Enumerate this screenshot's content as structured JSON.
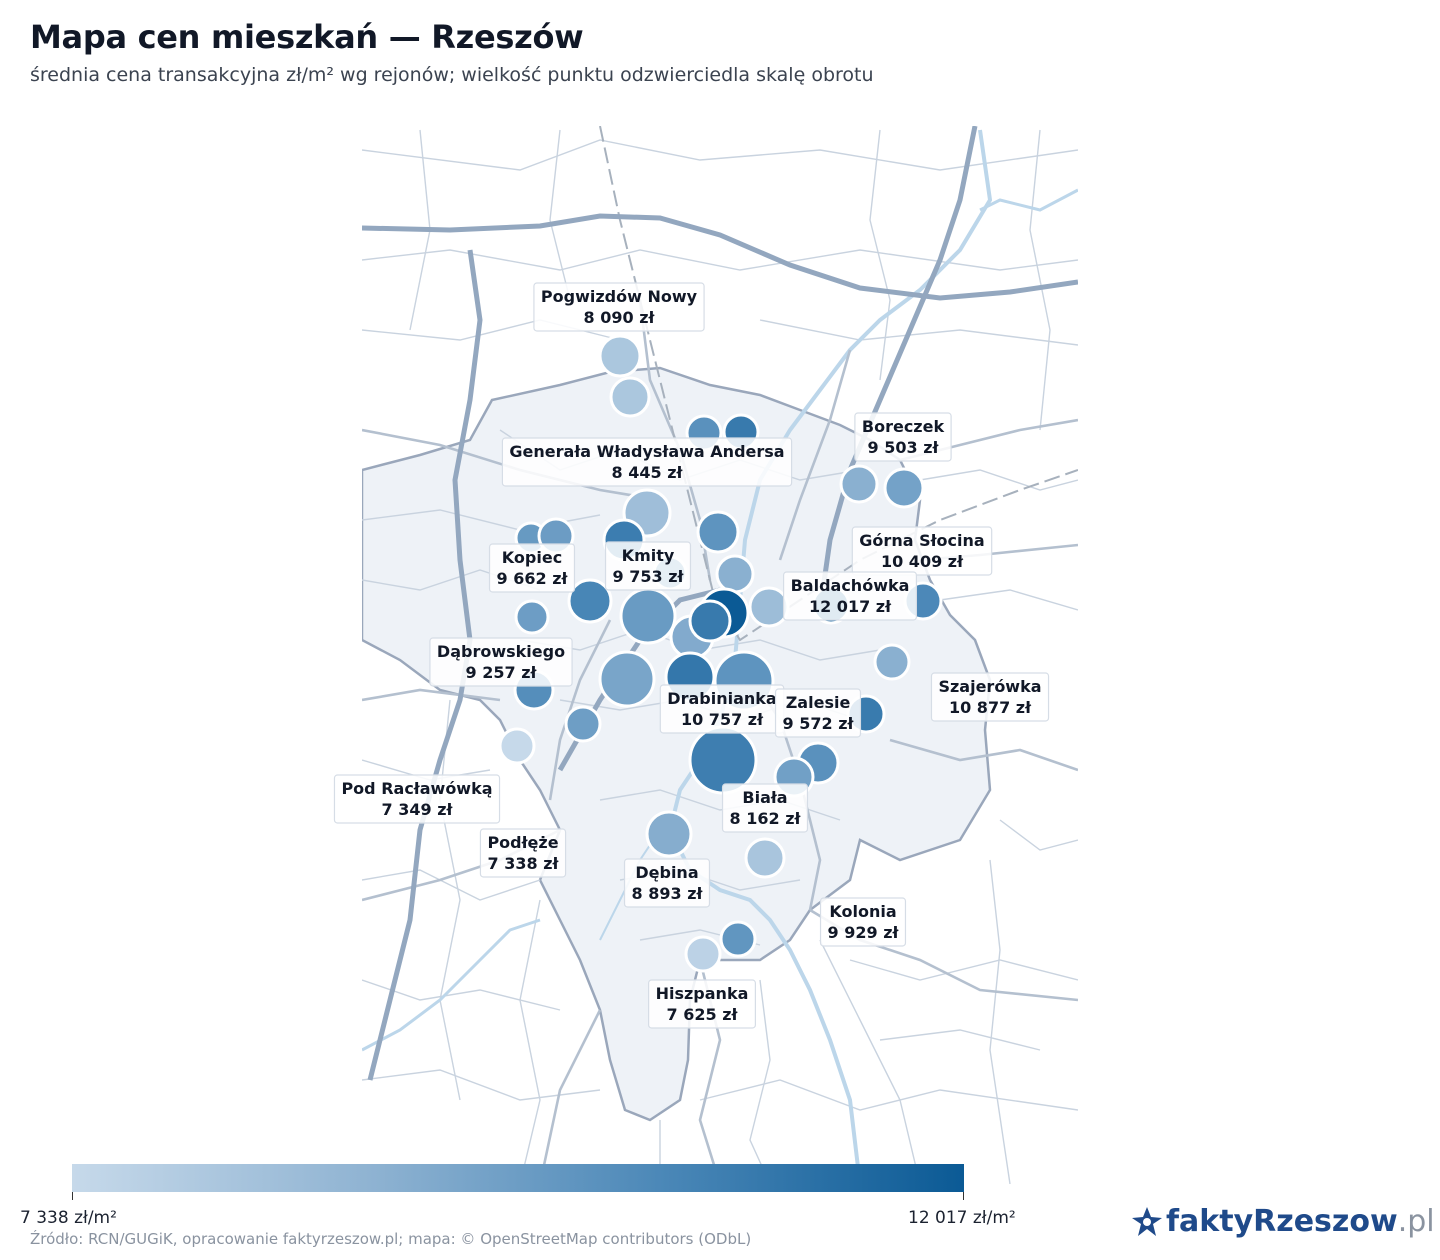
{
  "title": "Mapa cen mieszkań — Rzeszów",
  "subtitle": "średnia cena transakcyjna zł/m² wg rejonów; wielkość punktu odzwierciedla skalę obrotu",
  "legend": {
    "min_label": "7 338 zł/m²",
    "max_label": "12 017 zł/m²",
    "min_value": 7338,
    "max_value": 12017,
    "colors": [
      "#c6d9ea",
      "#8fb3d2",
      "#4a87b7",
      "#0b5a95"
    ]
  },
  "source": "Źródło: RCN/GUGiK, opracowanie faktyrzeszow.pl; mapa: © OpenStreetMap contributors (ODbL)",
  "brand": {
    "main": "faktyRzeszow",
    "suffix": ".pl"
  },
  "labeled_districts": [
    {
      "name": "Pogwizdów Nowy",
      "price": "8 090 zł",
      "value": 8090
    },
    {
      "name": "Generała Władysława Andersa",
      "price": "8 445 zł",
      "value": 8445
    },
    {
      "name": "Boreczek",
      "price": "9 503 zł",
      "value": 9503
    },
    {
      "name": "Górna Słocina",
      "price": "10 409 zł",
      "value": 10409
    },
    {
      "name": "Kopiec",
      "price": "9 662 zł",
      "value": 9662
    },
    {
      "name": "Kmity",
      "price": "9 753 zł",
      "value": 9753
    },
    {
      "name": "Baldachówka",
      "price": "12 017 zł",
      "value": 12017
    },
    {
      "name": "Dąbrowskiego",
      "price": "9 257 zł",
      "value": 9257
    },
    {
      "name": "Drabinianka",
      "price": "10 757 zł",
      "value": 10757
    },
    {
      "name": "Zalesie",
      "price": "9 572 zł",
      "value": 9572
    },
    {
      "name": "Szajerówka",
      "price": "10 877 zł",
      "value": 10877
    },
    {
      "name": "Pod Racławówką",
      "price": "7 349 zł",
      "value": 7349
    },
    {
      "name": "Biała",
      "price": "8 162 zł",
      "value": 8162
    },
    {
      "name": "Podłęże",
      "price": "7 338 zł",
      "value": 7338
    },
    {
      "name": "Dębina",
      "price": "8 893 zł",
      "value": 8893
    },
    {
      "name": "Kolonia",
      "price": "9 929 zł",
      "value": 9929
    },
    {
      "name": "Hiszpanka",
      "price": "7 625 zł",
      "value": 7625
    }
  ]
}
